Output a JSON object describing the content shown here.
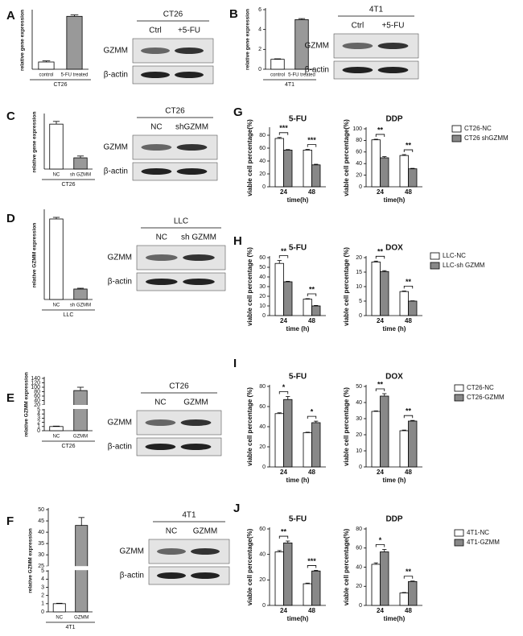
{
  "chart_data": [
    {
      "type": "bar",
      "panel": "A",
      "categories": [
        "control",
        "5-FU treated"
      ],
      "values": [
        1.0,
        7.3
      ],
      "errors": [
        0.15,
        0.2
      ],
      "colors": [
        "#ffffff",
        "#999999"
      ],
      "ylim": [
        0,
        8
      ],
      "ylabel": "relative gene expression",
      "xlabel": "CT26"
    },
    {
      "type": "bar",
      "panel": "B",
      "categories": [
        "control",
        "5-FU treated"
      ],
      "values": [
        1.0,
        5.0
      ],
      "errors": [
        0.05,
        0.1
      ],
      "colors": [
        "#ffffff",
        "#999999"
      ],
      "ylim": [
        0,
        6
      ],
      "yticks": [
        0,
        2,
        4,
        6
      ],
      "ylabel": "relative gene expression",
      "xlabel": "4T1"
    },
    {
      "type": "bar",
      "panel": "C",
      "categories": [
        "NC",
        "sh GZMM"
      ],
      "values": [
        1.0,
        0.25
      ],
      "errors": [
        0.06,
        0.04
      ],
      "colors": [
        "#ffffff",
        "#999999"
      ],
      "ylim": [
        0,
        1.2
      ],
      "ylabel": "relative gene expression",
      "xlabel": "CT26"
    },
    {
      "type": "bar",
      "panel": "D",
      "categories": [
        "NC",
        "sh GZMM"
      ],
      "values": [
        1.0,
        0.13
      ],
      "errors": [
        0.02,
        0.01
      ],
      "colors": [
        "#ffffff",
        "#999999"
      ],
      "ylim": [
        0,
        1.1
      ],
      "ylabel": "relative GZMM expression",
      "xlabel": "LLC"
    },
    {
      "type": "bar",
      "panel": "E",
      "categories": [
        "NC",
        "GZMM"
      ],
      "values": [
        1.0,
        85
      ],
      "errors": [
        0.1,
        15
      ],
      "colors": [
        "#ffffff",
        "#999999"
      ],
      "ylim": [
        0,
        140
      ],
      "ybreak": [
        5,
        20
      ],
      "yticks": [
        0,
        1,
        2,
        3,
        4,
        5,
        20,
        40,
        60,
        80,
        100,
        120,
        140
      ],
      "ylabel": "relative GZMM expression",
      "xlabel": "CT26"
    },
    {
      "type": "bar",
      "panel": "F",
      "categories": [
        "NC",
        "GZMM"
      ],
      "values": [
        1.0,
        43
      ],
      "errors": [
        0.05,
        3.5
      ],
      "colors": [
        "#ffffff",
        "#999999"
      ],
      "ylim": [
        0,
        50
      ],
      "ybreak": [
        5,
        25
      ],
      "yticks": [
        0,
        1,
        2,
        3,
        4,
        5,
        25,
        30,
        35,
        40,
        45,
        50
      ],
      "ylabel": "relative GZMM expression",
      "xlabel": "4T1"
    },
    {
      "type": "bar",
      "panel": "G",
      "title": "5-FU",
      "categories": [
        "24",
        "48"
      ],
      "series": [
        {
          "color": "#ffffff",
          "values": [
            75,
            57
          ],
          "errors": [
            1.5,
            1
          ]
        },
        {
          "color": "#888888",
          "values": [
            57,
            34
          ],
          "errors": [
            0.8,
            1
          ]
        }
      ],
      "annotations": [
        "***",
        "***"
      ],
      "ylim": [
        0,
        90
      ],
      "yticks": [
        0,
        20,
        40,
        60,
        80
      ],
      "ylabel": "viable cell percentage(%)",
      "xlabel": "time(h)"
    },
    {
      "type": "bar",
      "title": "DDP",
      "categories": [
        "24",
        "48"
      ],
      "series": [
        {
          "name": "CT26-NC",
          "color": "#ffffff",
          "values": [
            81,
            54
          ],
          "errors": [
            1,
            1.5
          ]
        },
        {
          "name": "CT26 shGZMM",
          "color": "#888888",
          "values": [
            50,
            31
          ],
          "errors": [
            2,
            0.8
          ]
        }
      ],
      "annotations": [
        "**",
        "**"
      ],
      "ylim": [
        0,
        100
      ],
      "yticks": [
        0,
        20,
        40,
        60,
        80,
        100
      ],
      "ylabel": "viable cell percentage(%)",
      "xlabel": "time(h)",
      "legend": "right"
    },
    {
      "type": "bar",
      "panel": "H",
      "title": "5-FU",
      "categories": [
        "24",
        "48"
      ],
      "series": [
        {
          "color": "#ffffff",
          "values": [
            54,
            17
          ],
          "errors": [
            3,
            0.5
          ]
        },
        {
          "color": "#888888",
          "values": [
            35,
            10
          ],
          "errors": [
            0.5,
            0.5
          ]
        }
      ],
      "annotations": [
        "**",
        "**"
      ],
      "ylim": [
        0,
        60
      ],
      "yticks": [
        0,
        10,
        20,
        30,
        40,
        50,
        60
      ],
      "ylabel": "viable cell percentage (%)",
      "xlabel": "time (h)"
    },
    {
      "type": "bar",
      "title": "DOX",
      "categories": [
        "24",
        "48"
      ],
      "series": [
        {
          "name": "LLC-NC",
          "color": "#ffffff",
          "values": [
            18.5,
            8.3
          ],
          "errors": [
            0.3,
            0.2
          ]
        },
        {
          "name": "LLC-sh GZMM",
          "color": "#888888",
          "values": [
            15.2,
            5.0
          ],
          "errors": [
            0.3,
            0.1
          ]
        }
      ],
      "annotations": [
        "**",
        "**"
      ],
      "ylim": [
        0,
        20
      ],
      "yticks": [
        0,
        5,
        10,
        15,
        20
      ],
      "ylabel": "viable cell percentage (%)",
      "xlabel": "time (h)",
      "legend": "right"
    },
    {
      "type": "bar",
      "panel": "I",
      "title": "5-FU",
      "categories": [
        "24",
        "48"
      ],
      "series": [
        {
          "color": "#ffffff",
          "values": [
            53,
            34
          ],
          "errors": [
            0.8,
            0.5
          ]
        },
        {
          "color": "#888888",
          "values": [
            67,
            44
          ],
          "errors": [
            3,
            1.5
          ]
        }
      ],
      "annotations": [
        "*",
        "*"
      ],
      "ylim": [
        0,
        80
      ],
      "yticks": [
        0,
        20,
        40,
        60,
        80
      ],
      "ylabel": "viable cell percentage (%)",
      "xlabel": "time (h)"
    },
    {
      "type": "bar",
      "title": "DOX",
      "categories": [
        "24",
        "48"
      ],
      "series": [
        {
          "name": "CT26-NC",
          "color": "#ffffff",
          "values": [
            34.5,
            22.5
          ],
          "errors": [
            0.3,
            0.4
          ]
        },
        {
          "name": "CT26-GZMM",
          "color": "#888888",
          "values": [
            44,
            28.5
          ],
          "errors": [
            1.5,
            0.4
          ]
        }
      ],
      "annotations": [
        "**",
        "**"
      ],
      "ylim": [
        0,
        50
      ],
      "yticks": [
        0,
        10,
        20,
        30,
        40,
        50
      ],
      "ylabel": "viable cell percentage (%)",
      "xlabel": "time (h)",
      "legend": "right"
    },
    {
      "type": "bar",
      "panel": "J",
      "title": "5-FU",
      "categories": [
        "24",
        "48"
      ],
      "series": [
        {
          "color": "#ffffff",
          "values": [
            42,
            17
          ],
          "errors": [
            1,
            0.5
          ]
        },
        {
          "color": "#888888",
          "values": [
            49,
            27
          ],
          "errors": [
            1.5,
            0.5
          ]
        }
      ],
      "annotations": [
        "**",
        "***"
      ],
      "ylim": [
        0,
        60
      ],
      "yticks": [
        0,
        20,
        40,
        60
      ],
      "ylabel": "viable cell percentage(%)",
      "xlabel": "time(h)"
    },
    {
      "type": "bar",
      "title": "DDP",
      "categories": [
        "24",
        "48"
      ],
      "series": [
        {
          "name": "4T1-NC",
          "color": "#ffffff",
          "values": [
            43,
            13
          ],
          "errors": [
            1.5,
            0.5
          ]
        },
        {
          "name": "4T1-GZMM",
          "color": "#888888",
          "values": [
            56,
            25
          ],
          "errors": [
            2.5,
            0.5
          ]
        }
      ],
      "annotations": [
        "*",
        "**"
      ],
      "ylim": [
        0,
        80
      ],
      "yticks": [
        0,
        20,
        40,
        60,
        80
      ],
      "ylabel": "viable cell percentage(%)",
      "xlabel": "time(h)",
      "legend": "right"
    }
  ],
  "blots": [
    {
      "cell": "CT26",
      "lanes": [
        "Ctrl",
        "+5-FU"
      ],
      "rows": [
        "GZMM",
        "β-actin"
      ]
    },
    {
      "cell": "4T1",
      "lanes": [
        "Ctrl",
        "+5-FU"
      ],
      "rows": [
        "GZMM",
        "β-actin"
      ]
    },
    {
      "cell": "CT26",
      "lanes": [
        "NC",
        "shGZMM"
      ],
      "rows": [
        "GZMM",
        "β-actin"
      ]
    },
    {
      "cell": "LLC",
      "lanes": [
        "NC",
        "sh GZMM"
      ],
      "rows": [
        "GZMM",
        "β-actin"
      ]
    },
    {
      "cell": "CT26",
      "lanes": [
        "NC",
        "GZMM"
      ],
      "rows": [
        "GZMM",
        "β-actin"
      ]
    },
    {
      "cell": "4T1",
      "lanes": [
        "NC",
        "GZMM"
      ],
      "rows": [
        "GZMM",
        "β-actin"
      ]
    }
  ]
}
